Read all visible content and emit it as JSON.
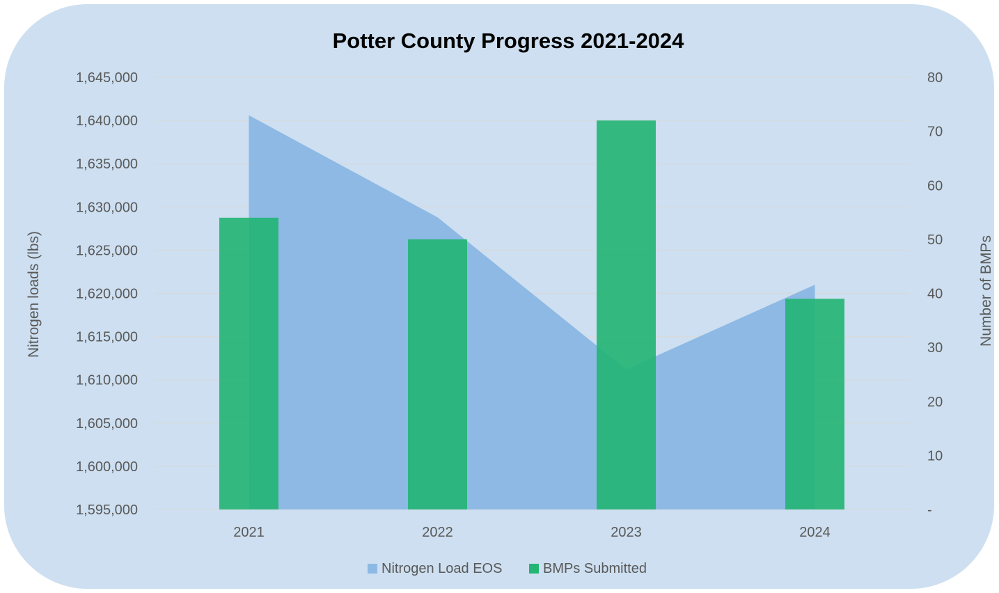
{
  "chart_data": {
    "type": "bar",
    "title": "Potter County Progress 2021-2024",
    "categories": [
      "2021",
      "2022",
      "2023",
      "2024"
    ],
    "y_left": {
      "label": "Nitrogen loads (lbs)",
      "ylim": [
        1595000,
        1645000
      ],
      "ticks": [
        "1,595,000",
        "1,600,000",
        "1,605,000",
        "1,610,000",
        "1,615,000",
        "1,620,000",
        "1,625,000",
        "1,630,000",
        "1,635,000",
        "1,640,000",
        "1,645,000"
      ],
      "tick_values": [
        1595000,
        1600000,
        1605000,
        1610000,
        1615000,
        1620000,
        1625000,
        1630000,
        1635000,
        1640000,
        1645000
      ]
    },
    "y_right": {
      "label": "Number of BMPs",
      "ylim": [
        0,
        80
      ],
      "ticks": [
        "-",
        "10",
        "20",
        "30",
        "40",
        "50",
        "60",
        "70",
        "80"
      ],
      "tick_values": [
        0,
        10,
        20,
        30,
        40,
        50,
        60,
        70,
        80
      ]
    },
    "series": [
      {
        "name": "Nitrogen Load EOS",
        "type": "area",
        "axis": "left",
        "color": "#8db9e4",
        "values": [
          1640600,
          1628800,
          1611200,
          1621000
        ]
      },
      {
        "name": "BMPs Submitted",
        "type": "bar",
        "axis": "right",
        "color": "#22b573",
        "values": [
          54,
          50,
          72,
          39
        ]
      }
    ],
    "grid": true,
    "legend": "bottom",
    "background": "#cddff0"
  }
}
